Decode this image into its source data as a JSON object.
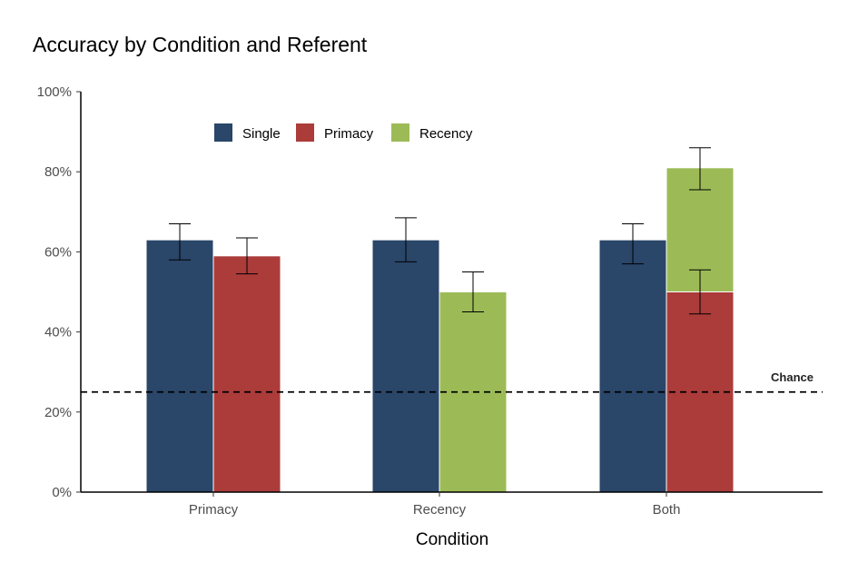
{
  "chart_data": {
    "type": "bar",
    "title": "Accuracy by Condition and Referent",
    "xlabel": "Condition",
    "ylabel": "",
    "ylim": [
      0,
      1
    ],
    "yticks": [
      0,
      0.2,
      0.4,
      0.6,
      0.8,
      1.0
    ],
    "ytick_labels": [
      "0%",
      "20%",
      "40%",
      "60%",
      "80%",
      "100%"
    ],
    "categories": [
      "Primacy",
      "Recency",
      "Both"
    ],
    "legend": {
      "position": "top-left",
      "entries": [
        {
          "name": "Single",
          "color": "#2a4669"
        },
        {
          "name": "Primacy",
          "color": "#ab3c3a"
        },
        {
          "name": "Recency",
          "color": "#9cbb57"
        }
      ]
    },
    "bars": [
      {
        "category": "Primacy",
        "series": "Single",
        "slot": 0,
        "base": 0,
        "value": 0.63,
        "error_low": 0.58,
        "error_high": 0.67
      },
      {
        "category": "Primacy",
        "series": "Primacy",
        "slot": 1,
        "base": 0,
        "value": 0.59,
        "error_low": 0.545,
        "error_high": 0.635
      },
      {
        "category": "Recency",
        "series": "Single",
        "slot": 0,
        "base": 0,
        "value": 0.63,
        "error_low": 0.575,
        "error_high": 0.685
      },
      {
        "category": "Recency",
        "series": "Recency",
        "slot": 1,
        "base": 0,
        "value": 0.5,
        "error_low": 0.45,
        "error_high": 0.55
      },
      {
        "category": "Both",
        "series": "Single",
        "slot": 0,
        "base": 0,
        "value": 0.63,
        "error_low": 0.57,
        "error_high": 0.67
      },
      {
        "category": "Both",
        "series": "Primacy",
        "slot": 1,
        "base": 0,
        "value": 0.5,
        "error_low": 0.445,
        "error_high": 0.555
      },
      {
        "category": "Both",
        "series": "Recency",
        "slot": 1,
        "base": 0.5,
        "value": 0.81,
        "error_low": 0.755,
        "error_high": 0.86
      }
    ],
    "reference_line": {
      "value": 0.25,
      "label": "Chance",
      "style": "dashed"
    },
    "grid": false,
    "colors": {
      "Single": "#2a4669",
      "Primacy": "#ab3c3a",
      "Recency": "#9cbb57"
    }
  }
}
